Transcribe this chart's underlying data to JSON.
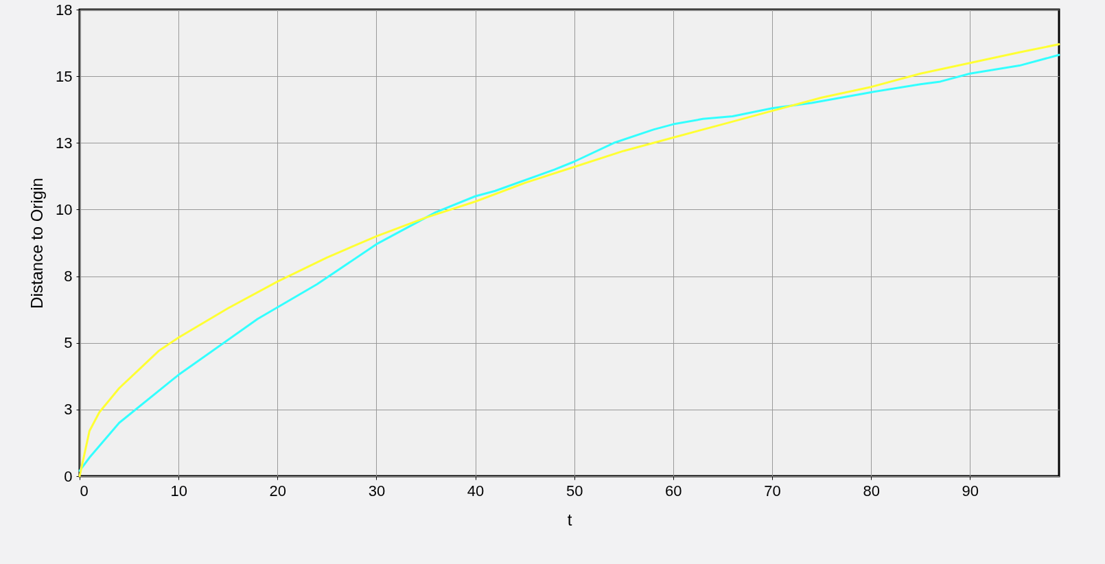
{
  "chart_data": {
    "type": "line",
    "xlabel": "t",
    "ylabel": "Distance to Origin",
    "xlim": [
      0,
      99
    ],
    "ylim": [
      0,
      17.5
    ],
    "xticks": [
      0,
      10,
      20,
      30,
      40,
      50,
      60,
      70,
      80,
      90
    ],
    "yticks": [
      0,
      {
        "value": 2.5,
        "label": "3"
      },
      5,
      {
        "value": 7.5,
        "label": "8"
      },
      10,
      {
        "value": 12.5,
        "label": "13"
      },
      15,
      {
        "value": 17.5,
        "label": "18"
      }
    ],
    "grid": true,
    "series": [
      {
        "color": "#33ffff",
        "x": [
          0,
          1,
          4,
          10,
          18,
          24,
          30,
          36,
          40,
          42,
          48,
          50,
          54,
          58,
          60,
          63,
          66,
          70,
          74,
          80,
          85,
          87,
          90,
          95,
          99
        ],
        "values": [
          0.2,
          0.7,
          2.0,
          3.8,
          5.9,
          7.2,
          8.7,
          9.9,
          10.5,
          10.7,
          11.5,
          11.8,
          12.5,
          13.0,
          13.2,
          13.4,
          13.5,
          13.8,
          14.0,
          14.4,
          14.7,
          14.8,
          15.1,
          15.4,
          15.8
        ]
      },
      {
        "color": "#ffff33",
        "x": [
          0,
          1,
          2,
          4,
          6,
          8,
          10,
          15,
          20,
          25,
          30,
          35,
          40,
          45,
          50,
          55,
          60,
          65,
          70,
          75,
          80,
          85,
          90,
          95,
          99
        ],
        "values": [
          0,
          1.7,
          2.4,
          3.3,
          4.0,
          4.7,
          5.2,
          6.3,
          7.3,
          8.2,
          9.0,
          9.7,
          10.3,
          11.0,
          11.6,
          12.2,
          12.7,
          13.2,
          13.7,
          14.2,
          14.6,
          15.1,
          15.5,
          15.9,
          16.2
        ]
      }
    ]
  }
}
